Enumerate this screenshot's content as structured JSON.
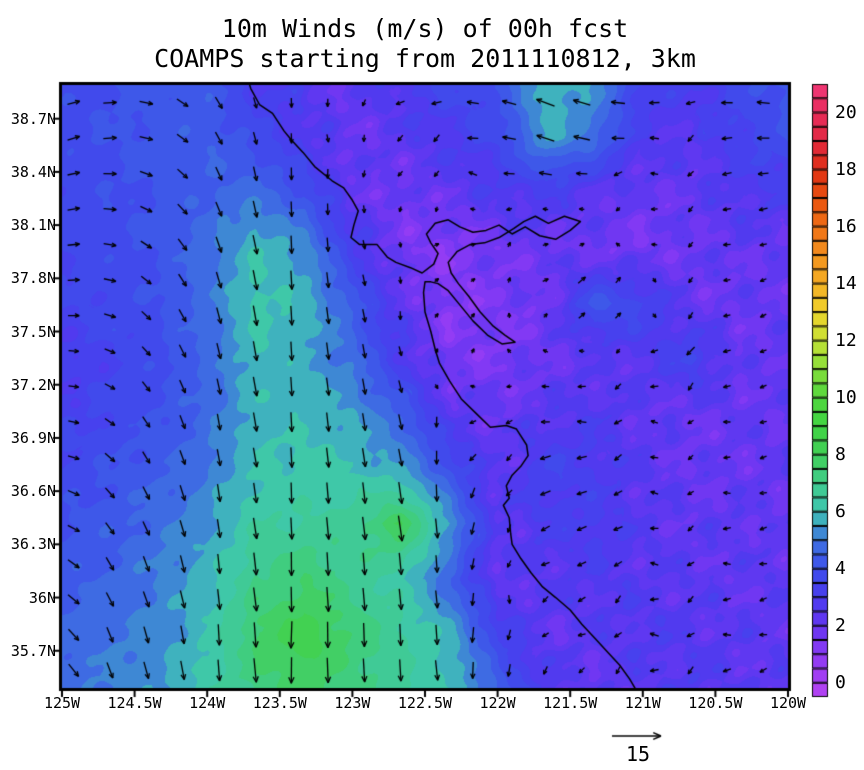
{
  "title": {
    "line1": "10m Winds (m/s) of 00h fcst",
    "line2": "COAMPS starting from 2011110812, 3km"
  },
  "chart_data": {
    "type": "heatmap",
    "subtype": "wind_vector_map",
    "title": "10m Winds (m/s) of 00h fcst",
    "subtitle": "COAMPS starting from 2011110812, 3km",
    "units": "m/s",
    "extent": {
      "lon_west_W": 125.0,
      "lon_east_W": 120.0,
      "lat_south_N": 35.49,
      "lat_north_N": 38.89
    },
    "x_ticks": {
      "labels": [
        "125W",
        "124.5W",
        "124W",
        "123.5W",
        "123W",
        "122.5W",
        "122W",
        "121.5W",
        "121W",
        "120.5W",
        "120W"
      ],
      "values": [
        125,
        124.5,
        124,
        123.5,
        123,
        122.5,
        122,
        121.5,
        121,
        120.5,
        120
      ]
    },
    "y_ticks": {
      "labels": [
        "38.7N",
        "38.4N",
        "38.1N",
        "37.8N",
        "37.5N",
        "37.2N",
        "36.9N",
        "36.6N",
        "36.3N",
        "36N",
        "35.7N"
      ],
      "values": [
        38.7,
        38.4,
        38.1,
        37.8,
        37.5,
        37.2,
        36.9,
        36.6,
        36.3,
        36.0,
        35.7
      ]
    },
    "colorbar": {
      "min": 0,
      "max": 20,
      "cell_interval": 0.5,
      "labels": [
        "0",
        "2",
        "4",
        "6",
        "8",
        "10",
        "12",
        "14",
        "16",
        "18",
        "20"
      ],
      "label_values": [
        0,
        2,
        4,
        6,
        8,
        10,
        12,
        14,
        16,
        18,
        20
      ],
      "bar_value_bottom": -0.5,
      "bar_value_top": 21,
      "stops": [
        [
          -0.5,
          "#b844f2"
        ],
        [
          0,
          "#a840f2"
        ],
        [
          1,
          "#8c3af4"
        ],
        [
          2,
          "#6636f2"
        ],
        [
          3,
          "#4a3cee"
        ],
        [
          4,
          "#3e4fec"
        ],
        [
          5,
          "#3e74e0"
        ],
        [
          6,
          "#3fc6b2"
        ],
        [
          7,
          "#40cc8c"
        ],
        [
          8,
          "#42d058"
        ],
        [
          9,
          "#40d442"
        ],
        [
          10,
          "#52d83e"
        ],
        [
          11,
          "#86de3a"
        ],
        [
          12,
          "#c6e236"
        ],
        [
          13,
          "#f0d42c"
        ],
        [
          14,
          "#f4ae24"
        ],
        [
          15,
          "#f4921e"
        ],
        [
          16,
          "#f07016"
        ],
        [
          17,
          "#ea5210"
        ],
        [
          18,
          "#e03014"
        ],
        [
          19,
          "#e22840"
        ],
        [
          20,
          "#e82c5c"
        ],
        [
          21,
          "#f03878"
        ]
      ]
    },
    "ref_vector": {
      "label": "15",
      "speed": 15
    },
    "arrow_grid": {
      "start_lon": 124.92,
      "dlon": 0.25,
      "cols": 20,
      "start_lat": 38.79,
      "dlat": 0.2,
      "rows": 17
    },
    "wind_grid": {
      "lons": [
        125,
        124.667,
        124.333,
        124,
        123.667,
        123.333,
        123,
        122.667,
        122.333,
        122,
        121.667,
        121.333,
        121,
        120.667,
        120.333,
        120
      ],
      "lats": [
        38.9,
        38.59,
        38.28,
        37.97,
        37.66,
        37.35,
        37.04,
        36.73,
        36.42,
        36.11,
        35.8,
        35.49
      ],
      "speed": [
        [
          3.8,
          4.0,
          4.2,
          4.3,
          3.2,
          2.6,
          2.2,
          3.0,
          3.6,
          4.0,
          6.0,
          5.4,
          3.4,
          3.0,
          3.8,
          4.2
        ],
        [
          3.8,
          4.0,
          4.2,
          4.4,
          3.8,
          2.8,
          2.0,
          2.4,
          3.0,
          3.6,
          5.6,
          4.8,
          2.8,
          2.5,
          3.4,
          4.0
        ],
        [
          3.7,
          3.9,
          4.1,
          4.5,
          4.8,
          4.0,
          2.2,
          1.8,
          2.2,
          2.8,
          3.0,
          2.4,
          2.0,
          2.2,
          2.8,
          3.0
        ],
        [
          3.6,
          3.8,
          4.1,
          4.8,
          6.0,
          5.4,
          3.2,
          1.6,
          1.2,
          1.8,
          2.0,
          1.8,
          1.6,
          2.0,
          2.2,
          2.0
        ],
        [
          3.5,
          3.7,
          4.0,
          4.8,
          6.2,
          5.8,
          4.4,
          2.4,
          1.2,
          1.5,
          1.8,
          4.3,
          3.6,
          2.0,
          2.0,
          2.0
        ],
        [
          2.9,
          3.4,
          3.9,
          4.6,
          6.0,
          5.6,
          4.8,
          3.0,
          1.5,
          1.5,
          2.0,
          2.2,
          2.6,
          3.6,
          2.0,
          2.2
        ],
        [
          3.2,
          3.6,
          4.0,
          4.7,
          5.8,
          5.9,
          5.5,
          4.5,
          2.5,
          2.0,
          2.5,
          2.8,
          2.2,
          2.0,
          2.2,
          2.0
        ],
        [
          3.6,
          4.0,
          4.4,
          5.0,
          6.0,
          6.2,
          6.0,
          5.5,
          4.0,
          2.2,
          3.5,
          3.0,
          2.5,
          2.0,
          2.0,
          2.2
        ],
        [
          4.0,
          4.3,
          4.8,
          5.4,
          6.4,
          6.6,
          6.8,
          8.0,
          5.5,
          2.5,
          3.0,
          3.2,
          2.5,
          2.2,
          2.4,
          2.0
        ],
        [
          4.3,
          4.6,
          5.1,
          5.8,
          7.0,
          7.5,
          6.8,
          6.2,
          4.5,
          2.2,
          2.5,
          2.8,
          2.5,
          2.4,
          2.2,
          2.4
        ],
        [
          4.6,
          4.9,
          5.3,
          6.0,
          7.6,
          8.4,
          7.4,
          6.6,
          5.8,
          3.5,
          2.2,
          2.4,
          2.8,
          2.5,
          2.4,
          2.2
        ],
        [
          4.8,
          5.1,
          5.4,
          6.3,
          7.2,
          7.8,
          7.2,
          6.6,
          6.0,
          4.5,
          2.8,
          2.2,
          2.4,
          2.8,
          2.4,
          2.4
        ]
      ],
      "dir_toward_deg": [
        [
          75,
          85,
          105,
          140,
          165,
          180,
          190,
          230,
          270,
          285,
          290,
          285,
          270,
          260,
          275,
          280
        ],
        [
          72,
          85,
          110,
          145,
          168,
          182,
          190,
          210,
          260,
          280,
          288,
          280,
          260,
          250,
          265,
          275
        ],
        [
          78,
          92,
          120,
          150,
          170,
          180,
          185,
          195,
          240,
          265,
          270,
          255,
          240,
          245,
          255,
          265
        ],
        [
          82,
          98,
          132,
          155,
          170,
          178,
          172,
          150,
          60,
          40,
          70,
          50,
          250,
          240,
          255,
          250
        ],
        [
          86,
          104,
          140,
          160,
          172,
          176,
          170,
          162,
          25,
          15,
          55,
          45,
          90,
          240,
          250,
          230
        ],
        [
          92,
          112,
          146,
          162,
          172,
          176,
          171,
          164,
          5,
          345,
          280,
          250,
          230,
          225,
          250,
          245
        ],
        [
          96,
          122,
          152,
          166,
          172,
          176,
          172,
          166,
          195,
          255,
          262,
          264,
          256,
          258,
          250,
          254
        ],
        [
          102,
          132,
          156,
          167,
          173,
          177,
          173,
          169,
          188,
          232,
          252,
          256,
          258,
          254,
          258,
          250
        ],
        [
          112,
          142,
          160,
          169,
          174,
          177,
          175,
          171,
          180,
          222,
          242,
          250,
          254,
          258,
          254,
          258
        ],
        [
          122,
          150,
          163,
          171,
          175,
          178,
          176,
          173,
          179,
          202,
          232,
          246,
          250,
          254,
          258,
          254
        ],
        [
          132,
          156,
          166,
          173,
          177,
          180,
          178,
          175,
          178,
          190,
          222,
          240,
          248,
          254,
          250,
          258
        ],
        [
          142,
          161,
          169,
          175,
          178,
          181,
          179,
          177,
          177,
          186,
          212,
          236,
          246,
          250,
          254,
          250
        ]
      ]
    },
    "coastline": [
      [
        123.73,
        38.95
      ],
      [
        123.7,
        38.87
      ],
      [
        123.64,
        38.78
      ],
      [
        123.55,
        38.73
      ],
      [
        123.47,
        38.63
      ],
      [
        123.42,
        38.58
      ],
      [
        123.34,
        38.51
      ],
      [
        123.26,
        38.43
      ],
      [
        123.14,
        38.35
      ],
      [
        123.06,
        38.31
      ],
      [
        123.0,
        38.24
      ],
      [
        122.96,
        38.18
      ],
      [
        122.99,
        38.1
      ],
      [
        123.01,
        38.03
      ],
      [
        122.95,
        37.99
      ],
      [
        122.83,
        37.99
      ],
      [
        122.76,
        37.92
      ],
      [
        122.7,
        37.89
      ],
      [
        122.6,
        37.86
      ],
      [
        122.52,
        37.83
      ],
      [
        122.44,
        37.88
      ],
      [
        122.41,
        37.94
      ],
      [
        122.46,
        38.0
      ],
      [
        122.49,
        38.05
      ],
      [
        122.43,
        38.11
      ],
      [
        122.34,
        38.13
      ],
      [
        122.26,
        38.09
      ],
      [
        122.17,
        38.06
      ],
      [
        122.08,
        38.07
      ],
      [
        121.99,
        38.1
      ],
      [
        121.9,
        38.05
      ],
      [
        121.81,
        38.09
      ],
      [
        121.71,
        38.04
      ],
      [
        121.6,
        38.02
      ],
      [
        121.5,
        38.07
      ],
      [
        121.43,
        38.12
      ],
      [
        121.54,
        38.15
      ],
      [
        121.65,
        38.11
      ],
      [
        121.74,
        38.15
      ],
      [
        121.82,
        38.12
      ],
      [
        121.89,
        38.08
      ],
      [
        121.99,
        38.03
      ],
      [
        122.09,
        38.0
      ],
      [
        122.19,
        37.99
      ],
      [
        122.28,
        37.95
      ],
      [
        122.34,
        37.89
      ],
      [
        122.32,
        37.83
      ],
      [
        122.27,
        37.77
      ],
      [
        122.2,
        37.7
      ],
      [
        122.12,
        37.61
      ],
      [
        122.03,
        37.53
      ],
      [
        121.95,
        37.48
      ],
      [
        121.88,
        37.44
      ],
      [
        121.97,
        37.43
      ],
      [
        122.07,
        37.48
      ],
      [
        122.17,
        37.56
      ],
      [
        122.27,
        37.66
      ],
      [
        122.34,
        37.73
      ],
      [
        122.41,
        37.77
      ],
      [
        122.46,
        37.78
      ],
      [
        122.5,
        37.78
      ],
      [
        122.51,
        37.72
      ],
      [
        122.5,
        37.61
      ],
      [
        122.46,
        37.5
      ],
      [
        122.43,
        37.4
      ],
      [
        122.4,
        37.32
      ],
      [
        122.33,
        37.22
      ],
      [
        122.25,
        37.12
      ],
      [
        122.15,
        37.04
      ],
      [
        122.05,
        36.96
      ],
      [
        121.94,
        36.97
      ],
      [
        121.87,
        36.95
      ],
      [
        121.8,
        36.86
      ],
      [
        121.79,
        36.8
      ],
      [
        121.84,
        36.74
      ],
      [
        121.9,
        36.69
      ],
      [
        121.94,
        36.63
      ],
      [
        121.92,
        36.56
      ],
      [
        121.96,
        36.52
      ],
      [
        121.92,
        36.45
      ],
      [
        121.91,
        36.36
      ],
      [
        121.9,
        36.3
      ],
      [
        121.84,
        36.22
      ],
      [
        121.77,
        36.14
      ],
      [
        121.69,
        36.06
      ],
      [
        121.6,
        36.0
      ],
      [
        121.5,
        35.93
      ],
      [
        121.42,
        35.85
      ],
      [
        121.33,
        35.77
      ],
      [
        121.24,
        35.69
      ],
      [
        121.16,
        35.62
      ],
      [
        121.09,
        35.54
      ],
      [
        121.04,
        35.47
      ]
    ]
  }
}
